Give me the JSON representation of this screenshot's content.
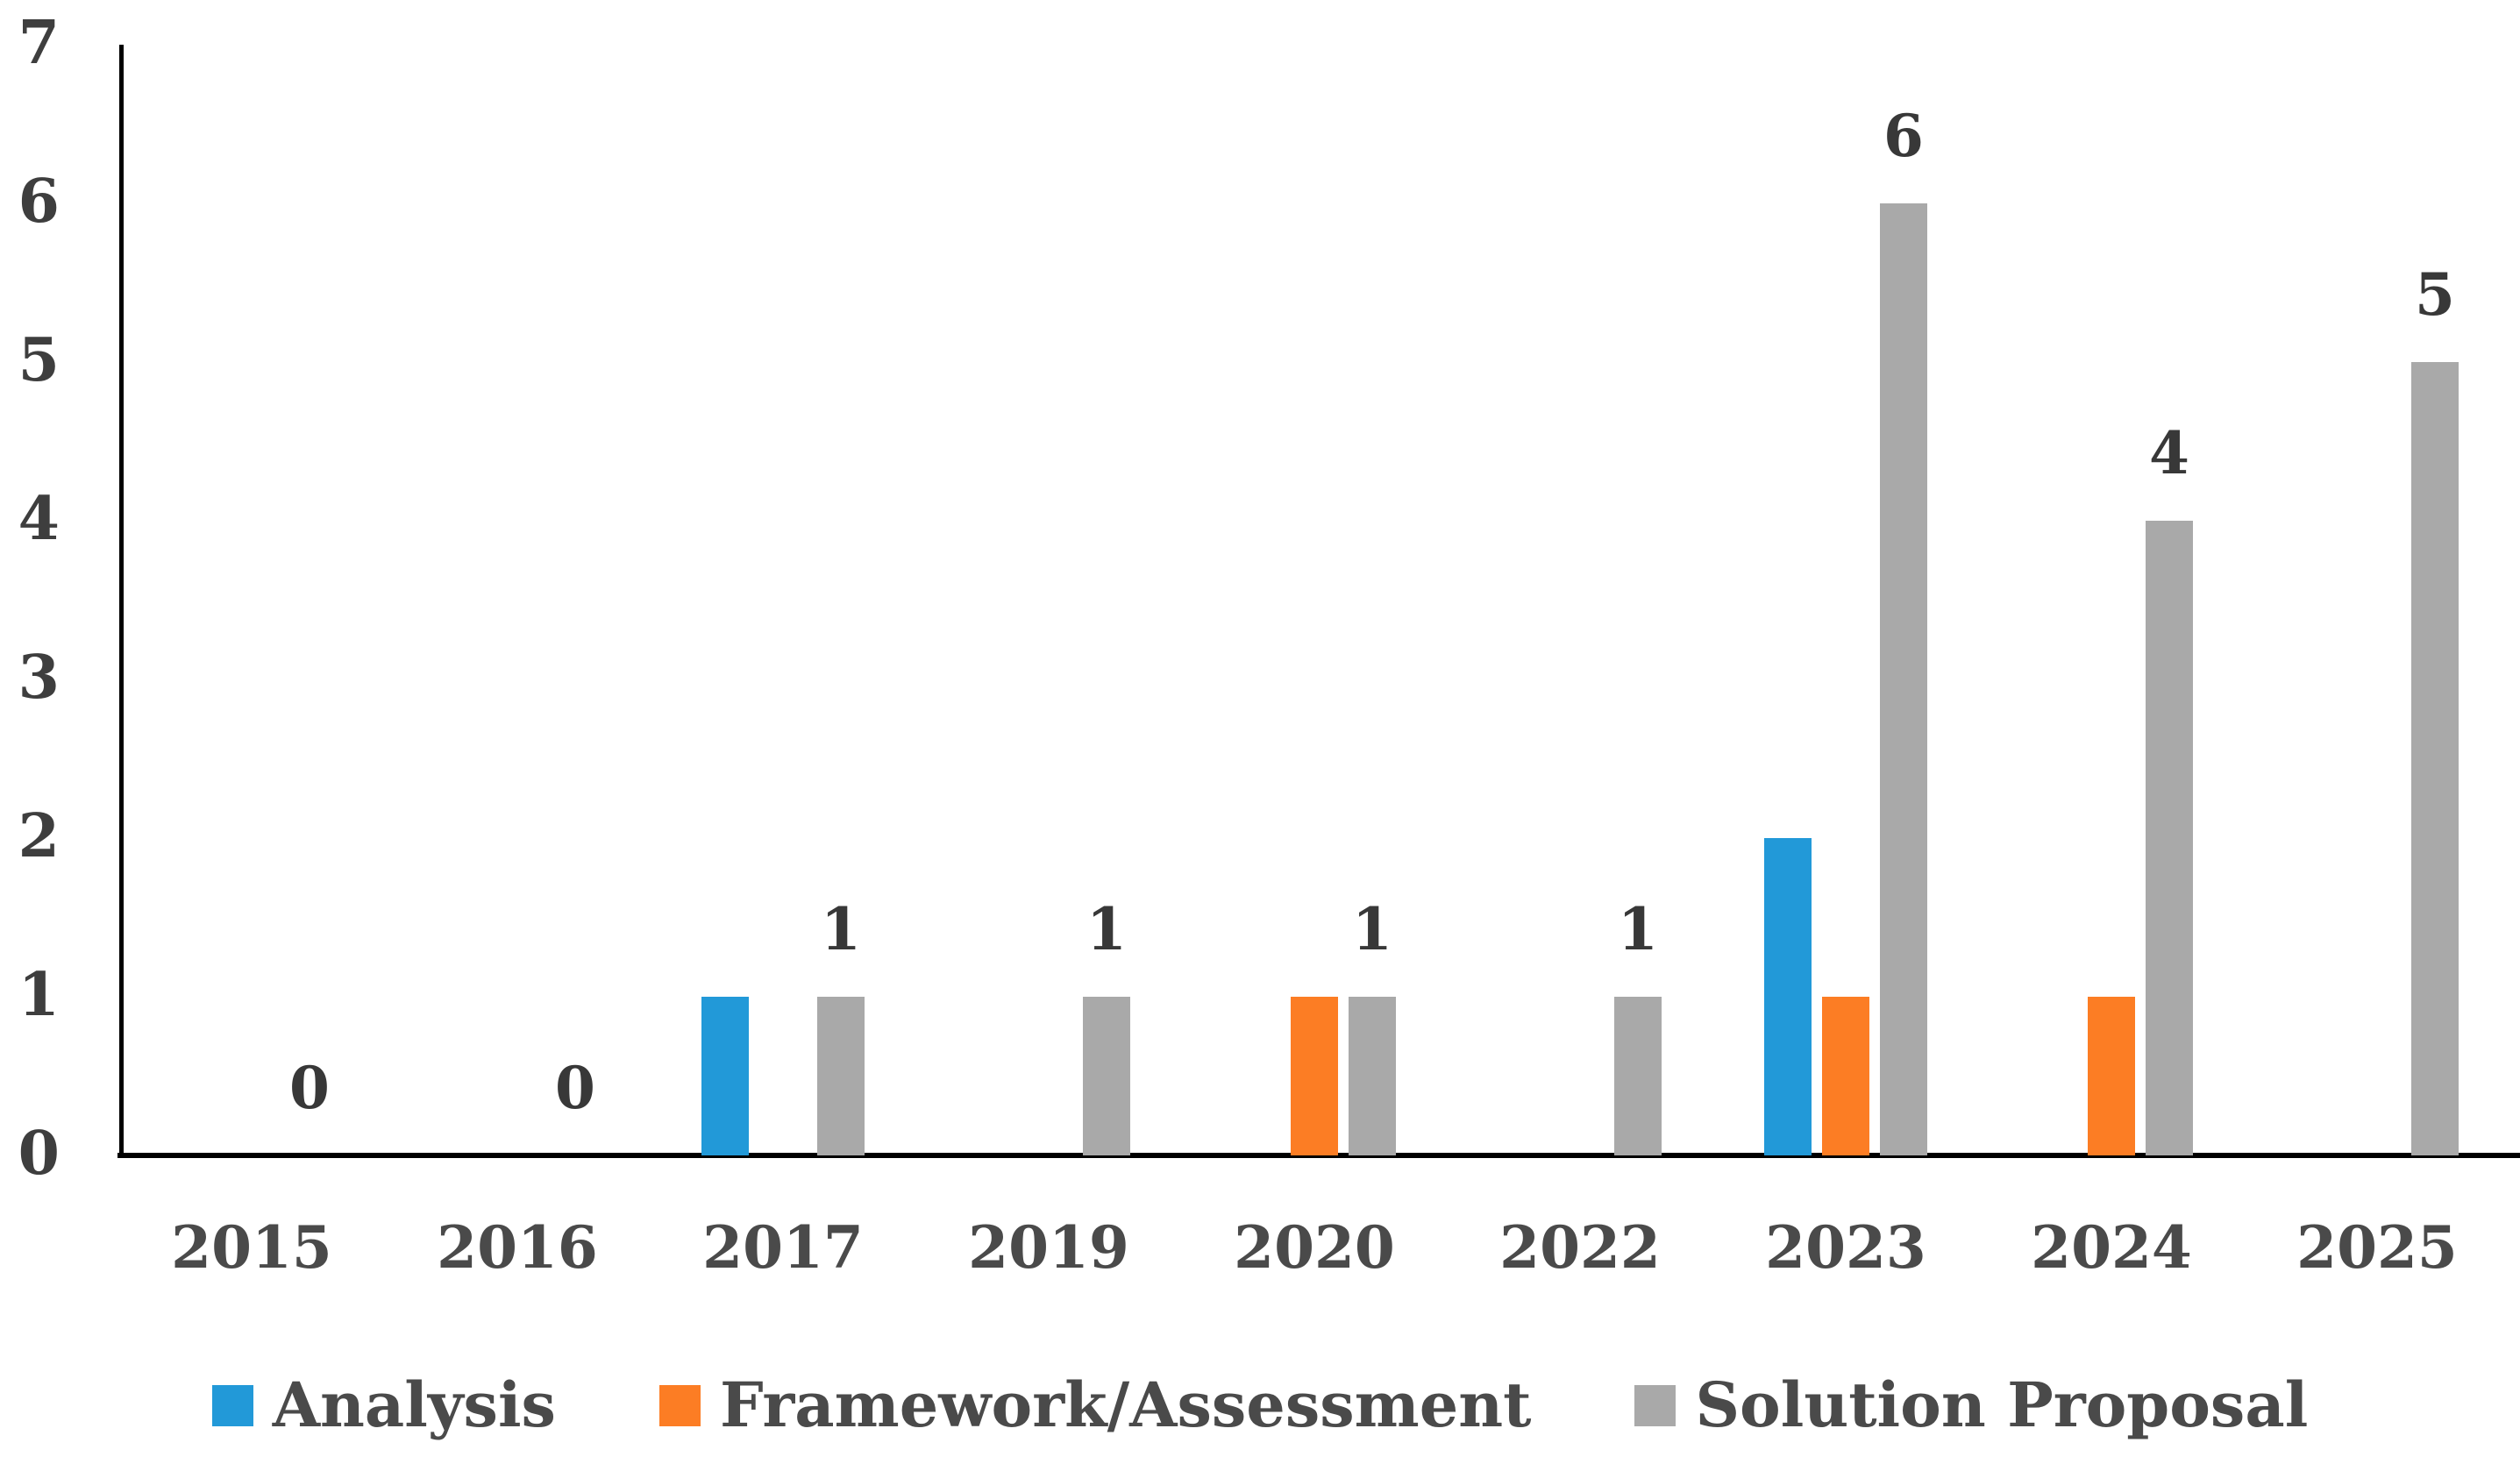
{
  "chart_data": {
    "type": "bar",
    "categories": [
      "2015",
      "2016",
      "2017",
      "2019",
      "2020",
      "2022",
      "2023",
      "2024",
      "2025"
    ],
    "series": [
      {
        "name": "Analysis",
        "color": "#2299d8",
        "values": [
          0,
          0,
          1,
          0,
          0,
          0,
          2,
          0,
          0
        ]
      },
      {
        "name": "Framework/Assessment",
        "color": "#fc7d24",
        "values": [
          0,
          0,
          0,
          0,
          1,
          0,
          1,
          1,
          0
        ]
      },
      {
        "name": "Solution Proposal",
        "color": "#a9a9a9",
        "values": [
          0,
          0,
          1,
          1,
          1,
          1,
          6,
          4,
          5
        ]
      }
    ],
    "data_labels": {
      "on_series": "Solution Proposal",
      "values": [
        "0",
        "0",
        "1",
        "1",
        "1",
        "1",
        "6",
        "4",
        "5"
      ]
    },
    "title": "",
    "xlabel": "",
    "ylabel": "",
    "ylim": [
      0,
      7
    ],
    "yticks": [
      "0",
      "1",
      "2",
      "3",
      "4",
      "5",
      "6",
      "7"
    ],
    "grid": false,
    "legend_position": "bottom",
    "axis_color": "#000000",
    "text_color": "#3e3e3e"
  }
}
